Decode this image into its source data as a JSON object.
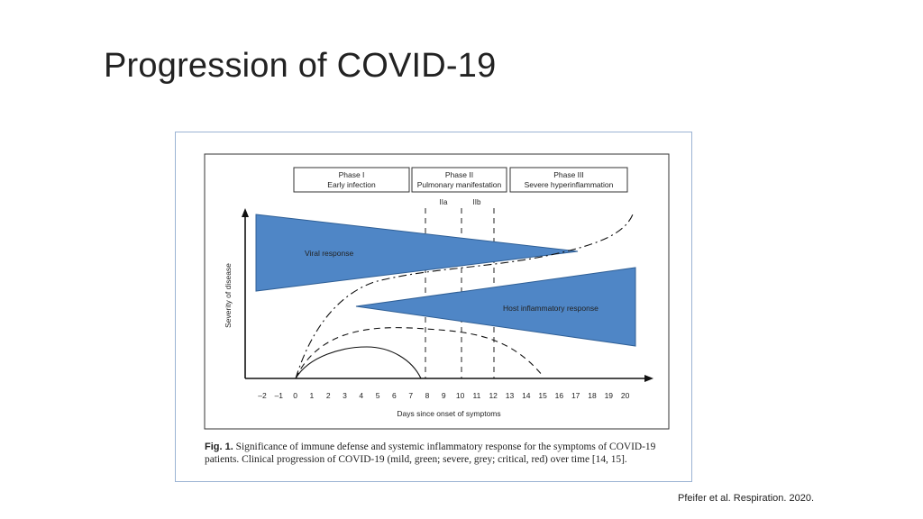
{
  "slide": {
    "title": "Progression of COVID-19",
    "citation": "Pfeifer et al. Respiration. 2020."
  },
  "figure": {
    "phases": [
      {
        "line1": "Phase I",
        "line2": "Early infection"
      },
      {
        "line1": "Phase II",
        "line2": "Pulmonary manifestation"
      },
      {
        "line1": "Phase III",
        "line2": "Severe hyperinflammation"
      }
    ],
    "subphases": [
      "IIa",
      "IIb"
    ],
    "labels": {
      "viral_response": "Viral response",
      "host_response": "Host inflammatory response",
      "ylabel": "Severity of disease",
      "xlabel": "Days since onset of symptoms"
    },
    "x_ticks": [
      "–2",
      "–1",
      "0",
      "1",
      "2",
      "3",
      "4",
      "5",
      "6",
      "7",
      "8",
      "9",
      "10",
      "11",
      "12",
      "13",
      "14",
      "15",
      "16",
      "17",
      "18",
      "19",
      "20"
    ],
    "colors": {
      "wedge_fill": "#4f86c6",
      "wedge_stroke": "#2f5f96",
      "frame": "#9bb3d3"
    },
    "caption": {
      "label": "Fig. 1.",
      "text": "Significance of immune defense and systemic inflammatory response for the symptoms of COVID-19 patients. Clinical progression of COVID-19 (mild, green; severe, grey; critical, red) over time [14, 15]."
    }
  }
}
